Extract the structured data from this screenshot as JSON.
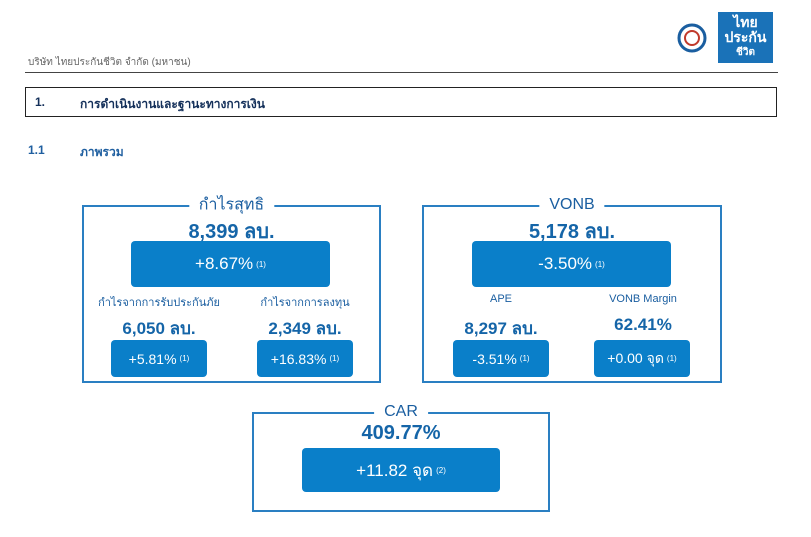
{
  "header": {
    "company": "บริษัท ไทยประกันชีวิต จำกัด (มหาชน)",
    "logo": [
      "ไทย",
      "ประกัน",
      "ชีวิต"
    ]
  },
  "section": {
    "number": "1.",
    "title": "การดำเนินงานและฐานะทางการเงิน"
  },
  "subsection": {
    "number": "1.1",
    "title": "ภาพรวม"
  },
  "panels": [
    {
      "label": "กำไรสุทธิ",
      "value": "8,399 ลบ.",
      "change": "+8.67%",
      "note": "(1)",
      "items": [
        {
          "label": "กำไรจากการรับประกันภัย",
          "value": "6,050 ลบ.",
          "change": "+5.81%",
          "note": "(1)"
        },
        {
          "label": "กำไรจากการลงทุน",
          "value": "2,349 ลบ.",
          "change": "+16.83%",
          "note": "(1)"
        }
      ]
    },
    {
      "label": "VONB",
      "value": "5,178 ลบ.",
      "change": "-3.50%",
      "note": "(1)",
      "items": [
        {
          "label": "APE",
          "value": "8,297 ลบ.",
          "change": "-3.51%",
          "note": "(1)"
        },
        {
          "label": "VONB Margin",
          "value": "62.41%",
          "change": "+0.00 จุด",
          "note": "(1)"
        }
      ]
    },
    {
      "label": "CAR",
      "value": "409.77%",
      "change": "+11.82 จุด",
      "note": "(2)",
      "items": []
    }
  ]
}
